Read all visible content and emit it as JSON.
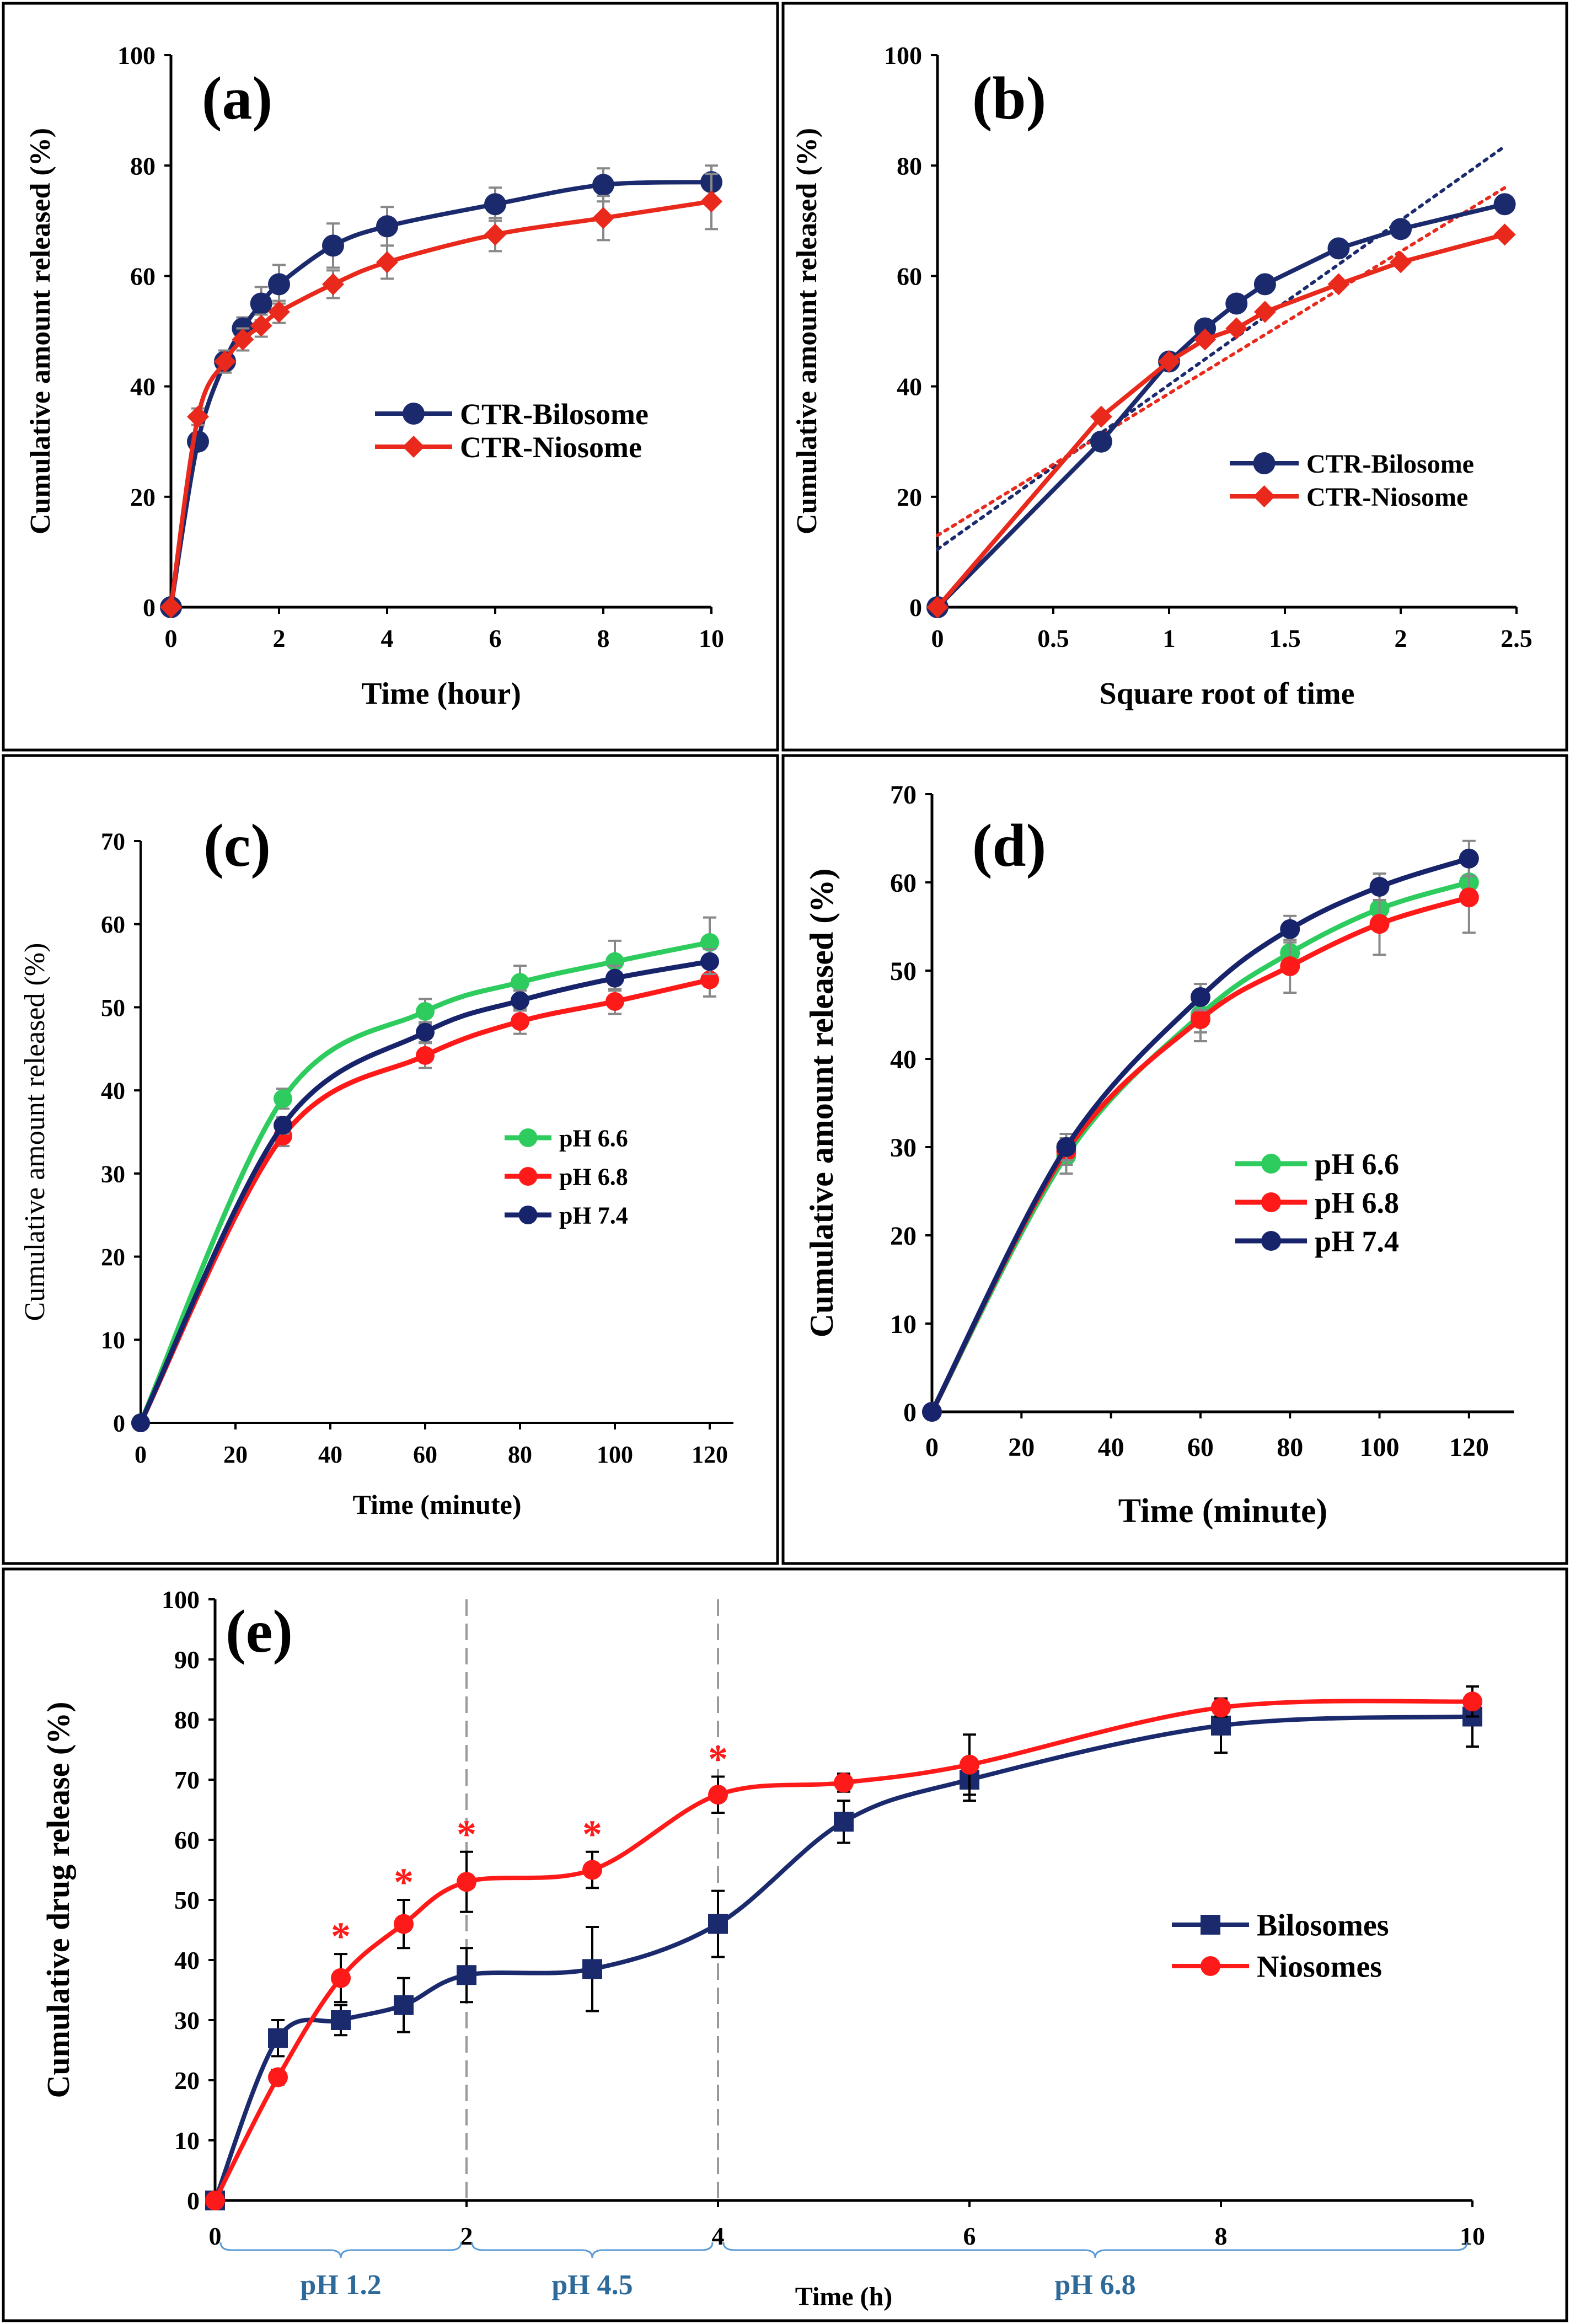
{
  "chart_data": [
    {
      "panel": "a",
      "type": "line",
      "label": "(a)",
      "xlabel": "Time (hour)",
      "ylabel": "Cumulative  amount released (%)",
      "xlim": [
        0,
        10
      ],
      "ylim": [
        0,
        100
      ],
      "xticks": [
        0,
        2,
        4,
        6,
        8,
        10
      ],
      "yticks": [
        0,
        20,
        40,
        60,
        80,
        100
      ],
      "legend_position": "middle-right",
      "series": [
        {
          "name": "CTR-Bilosome",
          "color": "#1a2a6c",
          "marker": "circle",
          "x": [
            0,
            0.5,
            1,
            1.33,
            1.67,
            2,
            3,
            4,
            6,
            8,
            10
          ],
          "y": [
            0,
            30,
            44.5,
            50.5,
            55,
            58.5,
            65.5,
            69,
            73,
            76.5,
            77
          ],
          "err": [
            0,
            1.5,
            2,
            2,
            3,
            3.5,
            4,
            3.5,
            3,
            3,
            3
          ]
        },
        {
          "name": "CTR-Niosome",
          "color": "#e8291c",
          "marker": "diamond",
          "x": [
            0,
            0.5,
            1,
            1.33,
            1.67,
            2,
            3,
            4,
            6,
            8,
            10
          ],
          "y": [
            0,
            34.5,
            44.5,
            48.5,
            51,
            53.5,
            58.5,
            62.5,
            67.5,
            70.5,
            73.5
          ],
          "err": [
            0,
            1.5,
            2,
            2,
            2,
            2,
            2.5,
            3,
            3,
            4,
            5
          ]
        }
      ]
    },
    {
      "panel": "b",
      "type": "line",
      "label": "(b)",
      "xlabel": "Square root of time",
      "ylabel": "Cumulative  amount released (%)",
      "xlim": [
        0,
        2.5
      ],
      "ylim": [
        0,
        100
      ],
      "xticks": [
        0,
        0.5,
        1,
        1.5,
        2,
        2.5
      ],
      "yticks": [
        0,
        20,
        40,
        60,
        80,
        100
      ],
      "legend_position": "bottom-right",
      "series": [
        {
          "name": "CTR-Bilosome",
          "color": "#1a2a6c",
          "marker": "circle",
          "x": [
            0,
            0.707,
            1,
            1.155,
            1.291,
            1.414,
            1.732,
            2,
            2.449
          ],
          "y": [
            0,
            30,
            44.5,
            50.5,
            55,
            58.5,
            65,
            68.5,
            73
          ],
          "trend": [
            [
              0,
              10.5
            ],
            [
              2.45,
              83.5
            ]
          ]
        },
        {
          "name": "CTR-Niosome",
          "color": "#e8291c",
          "marker": "diamond",
          "x": [
            0,
            0.707,
            1,
            1.155,
            1.291,
            1.414,
            1.732,
            2,
            2.449
          ],
          "y": [
            0,
            34.5,
            44.5,
            48.5,
            50.5,
            53.5,
            58.5,
            62.5,
            67.5
          ],
          "trend": [
            [
              0,
              13
            ],
            [
              2.45,
              76
            ]
          ]
        }
      ]
    },
    {
      "panel": "c",
      "type": "line",
      "label": "(c)",
      "xlabel": "Time (minute)",
      "ylabel": "Cumulative  amount released (%)",
      "xlim": [
        0,
        125
      ],
      "ylim": [
        0,
        70
      ],
      "xticks": [
        0,
        20,
        40,
        60,
        80,
        100,
        120
      ],
      "yticks": [
        0,
        10,
        20,
        30,
        40,
        50,
        60,
        70
      ],
      "legend_position": "middle-right",
      "series": [
        {
          "name": "pH 6.6",
          "color": "#2ecc5e",
          "marker": "circle",
          "x": [
            0,
            30,
            60,
            80,
            100,
            120
          ],
          "y": [
            0,
            39,
            49.5,
            53,
            55.5,
            57.8
          ],
          "err": [
            0,
            1.2,
            1.5,
            2,
            2.5,
            3
          ]
        },
        {
          "name": "pH 6.8",
          "color": "#ff1a1a",
          "marker": "circle",
          "x": [
            0,
            30,
            60,
            80,
            100,
            120
          ],
          "y": [
            0,
            34.5,
            44.2,
            48.3,
            50.7,
            53.3
          ],
          "err": [
            0,
            1.2,
            1.5,
            1.5,
            1.5,
            2
          ]
        },
        {
          "name": "pH 7.4",
          "color": "#17246b",
          "marker": "circle",
          "x": [
            0,
            30,
            60,
            80,
            100,
            120
          ],
          "y": [
            0,
            35.8,
            47,
            50.8,
            53.5,
            55.5
          ],
          "err": [
            0,
            1,
            1.2,
            1.2,
            1.5,
            1.5
          ]
        }
      ]
    },
    {
      "panel": "d",
      "type": "line",
      "label": "(d)",
      "xlabel": "Time (minute)",
      "ylabel": "Cumulative  amount released (%)",
      "xlim": [
        0,
        130
      ],
      "ylim": [
        0,
        70
      ],
      "xticks": [
        0,
        20,
        40,
        60,
        80,
        100,
        120
      ],
      "yticks": [
        0,
        10,
        20,
        30,
        40,
        50,
        60,
        70
      ],
      "legend_position": "bottom-right",
      "series": [
        {
          "name": "pH 6.6",
          "color": "#2ecc5e",
          "marker": "circle",
          "x": [
            0,
            30,
            60,
            80,
            100,
            120
          ],
          "y": [
            0,
            29,
            45,
            52,
            57,
            60
          ],
          "err": [
            0,
            2,
            2,
            2,
            2,
            2
          ]
        },
        {
          "name": "pH 6.8",
          "color": "#ff1a1a",
          "marker": "circle",
          "x": [
            0,
            30,
            60,
            80,
            100,
            120
          ],
          "y": [
            0,
            29.5,
            44.5,
            50.5,
            55.3,
            58.3
          ],
          "err": [
            0,
            1.5,
            2.5,
            3,
            3.5,
            4
          ]
        },
        {
          "name": "pH 7.4",
          "color": "#17246b",
          "marker": "circle",
          "x": [
            0,
            30,
            60,
            80,
            100,
            120
          ],
          "y": [
            0,
            30,
            47,
            54.7,
            59.5,
            62.7
          ],
          "err": [
            0,
            1.5,
            1.5,
            1.5,
            1.5,
            2
          ]
        }
      ]
    },
    {
      "panel": "e",
      "type": "line",
      "label": "(e)",
      "xlabel": "Time (h)",
      "ylabel": "Cumulative  drug release (%)",
      "xlim": [
        0,
        10
      ],
      "ylim": [
        0,
        100
      ],
      "xticks": [
        0,
        2,
        4,
        6,
        8,
        10
      ],
      "yticks": [
        0,
        10,
        20,
        30,
        40,
        50,
        60,
        70,
        80,
        90,
        100
      ],
      "legend_position": "middle-right",
      "phase_boundaries": [
        2,
        4
      ],
      "phases": [
        {
          "label": "pH 1.2",
          "from": 0,
          "to": 2
        },
        {
          "label": "pH 4.5",
          "from": 2,
          "to": 4
        },
        {
          "label": "pH 6.8",
          "from": 4,
          "to": 10
        }
      ],
      "significance_marker": "*",
      "significant_x": [
        1,
        1.5,
        2,
        3,
        4
      ],
      "series": [
        {
          "name": "Bilosomes",
          "color": "#1a2a6c",
          "marker": "square",
          "x": [
            0,
            0.5,
            1,
            1.5,
            2,
            3,
            4,
            5,
            6,
            8,
            10
          ],
          "y": [
            0,
            27,
            30,
            32.5,
            37.5,
            38.5,
            46,
            63,
            70,
            79,
            80.5
          ],
          "err": [
            0,
            3,
            2.5,
            4.5,
            4.5,
            7,
            5.5,
            3.5,
            3.5,
            4.5,
            5
          ]
        },
        {
          "name": "Niosomes",
          "color": "#ff1a1a",
          "marker": "circle",
          "x": [
            0,
            0.5,
            1,
            1.5,
            2,
            3,
            4,
            5,
            6,
            8,
            10
          ],
          "y": [
            0,
            20.5,
            37,
            46,
            53,
            55,
            67.5,
            69.5,
            72.5,
            82,
            83
          ],
          "err": [
            0,
            1.2,
            4,
            4,
            5,
            3,
            3,
            1.5,
            5,
            1.5,
            2.5
          ]
        }
      ]
    }
  ]
}
